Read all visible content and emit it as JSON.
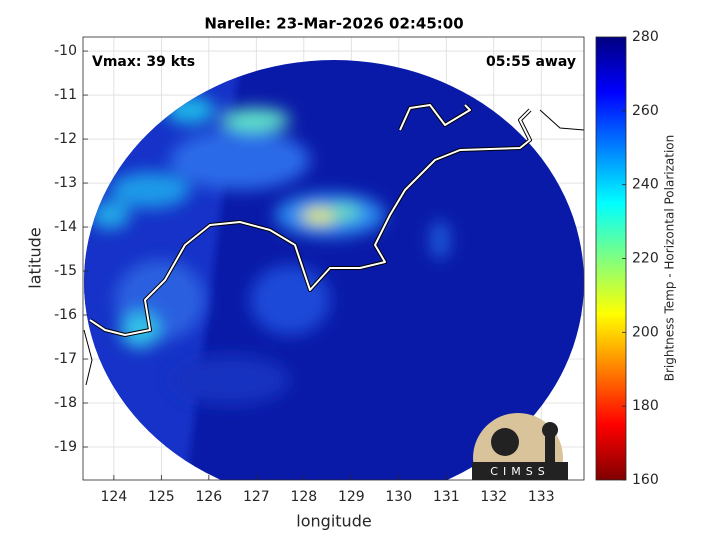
{
  "chart_data": {
    "type": "map",
    "title": "Narelle: 23-Mar-2026 02:45:00",
    "annotations": [
      "Vmax: 39 kts",
      "05:55 away"
    ],
    "x_label": "longitude",
    "y_label": "latitude",
    "xlim": [
      123.35,
      133.9
    ],
    "xticks": [
      124,
      125,
      126,
      127,
      128,
      129,
      130,
      131,
      132,
      133
    ],
    "ylim": [
      -19.75,
      -9.68
    ],
    "yticks": [
      -10,
      -11,
      -12,
      -13,
      -14,
      -15,
      -16,
      -17,
      -18,
      -19
    ],
    "grid": true,
    "colorbar": {
      "label": "Brightness Temp - Horizontal Polarization",
      "colormap": "jet",
      "lim": [
        160,
        280
      ],
      "ticks": [
        160,
        180,
        200,
        220,
        240,
        260,
        280
      ]
    },
    "logo_text": "CIMSS"
  }
}
